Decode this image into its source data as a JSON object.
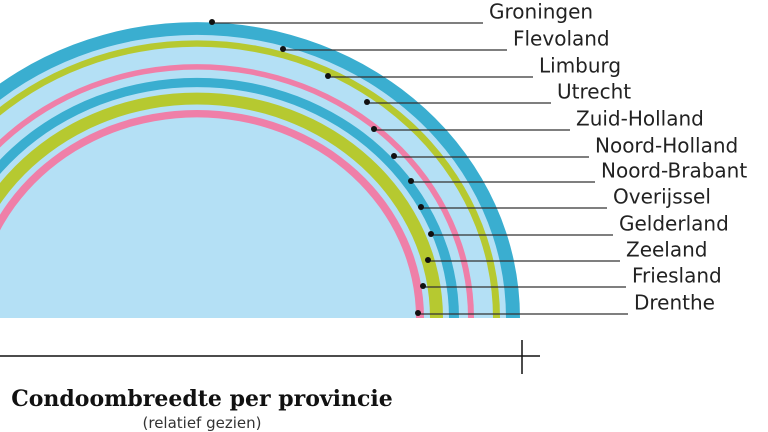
{
  "title": "Condoombreedte per provincie",
  "subtitle": "(relatief gezien)",
  "provinces": [
    "Groningen",
    "Flevoland",
    "Limburg",
    "Utrecht",
    "Zuid-Holland",
    "Noord-Holland",
    "Noord-Brabant",
    "Overijssel",
    "Gelderland",
    "Zeeland",
    "Friesland",
    "Drenthe"
  ]
}
